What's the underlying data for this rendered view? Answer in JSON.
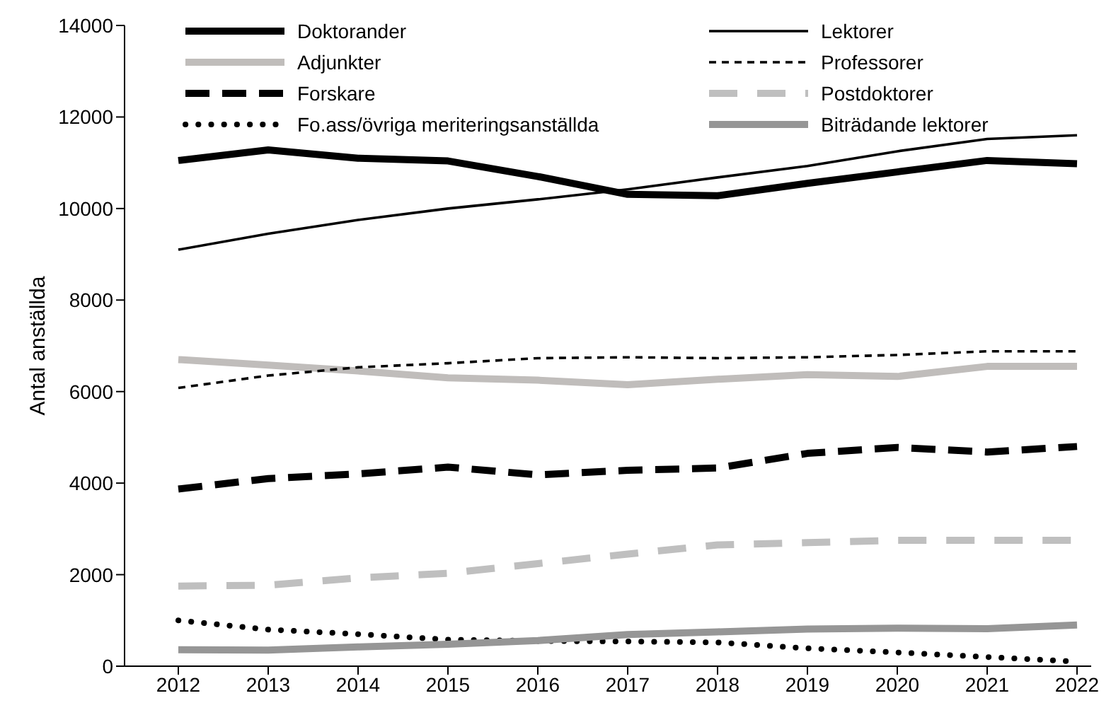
{
  "chart_data": {
    "type": "line",
    "ylabel": "Antal anställda",
    "categories": [
      "2012",
      "2013",
      "2014",
      "2015",
      "2016",
      "2017",
      "2018",
      "2019",
      "2020",
      "2021",
      "2022"
    ],
    "ylim": [
      0,
      14000
    ],
    "yticks": [
      0,
      2000,
      4000,
      6000,
      8000,
      10000,
      12000,
      14000
    ],
    "grid": false,
    "legend": "top",
    "marker": "none",
    "series": [
      {
        "name": "Doktorander",
        "color": "#000000",
        "line_style": "solid",
        "values": [
          11050,
          11280,
          11100,
          11040,
          10700,
          10310,
          10280,
          10550,
          10800,
          11050,
          10980
        ]
      },
      {
        "name": "Lektorer",
        "color": "#000000",
        "line_style": "solid",
        "values": [
          9100,
          9450,
          9750,
          10000,
          10200,
          10420,
          10680,
          10930,
          11250,
          11520,
          11600
        ]
      },
      {
        "name": "Adjunkter",
        "color": "#c0bdbb",
        "line_style": "solid",
        "values": [
          6700,
          6580,
          6450,
          6300,
          6250,
          6150,
          6270,
          6370,
          6330,
          6550,
          6550
        ]
      },
      {
        "name": "Professorer",
        "color": "#000000",
        "line_style": "dashed",
        "values": [
          6080,
          6350,
          6530,
          6620,
          6730,
          6750,
          6730,
          6750,
          6800,
          6880,
          6880
        ]
      },
      {
        "name": "Forskare",
        "color": "#000000",
        "line_style": "dashed",
        "values": [
          3870,
          4100,
          4200,
          4350,
          4180,
          4280,
          4330,
          4650,
          4780,
          4680,
          4800
        ]
      },
      {
        "name": "Postdoktorer",
        "color": "#bfbfbf",
        "line_style": "dashed",
        "values": [
          1750,
          1770,
          1930,
          2030,
          2240,
          2450,
          2650,
          2700,
          2750,
          2750,
          2750
        ]
      },
      {
        "name": "Fo.ass/övriga meriteringsanställda",
        "color": "#000000",
        "line_style": "dotted",
        "values": [
          1000,
          800,
          700,
          580,
          550,
          540,
          520,
          390,
          300,
          200,
          100
        ]
      },
      {
        "name": "Biträdande lektorer",
        "color": "#969696",
        "line_style": "solid",
        "values": [
          360,
          350,
          420,
          480,
          560,
          690,
          750,
          810,
          830,
          820,
          900
        ]
      }
    ]
  }
}
